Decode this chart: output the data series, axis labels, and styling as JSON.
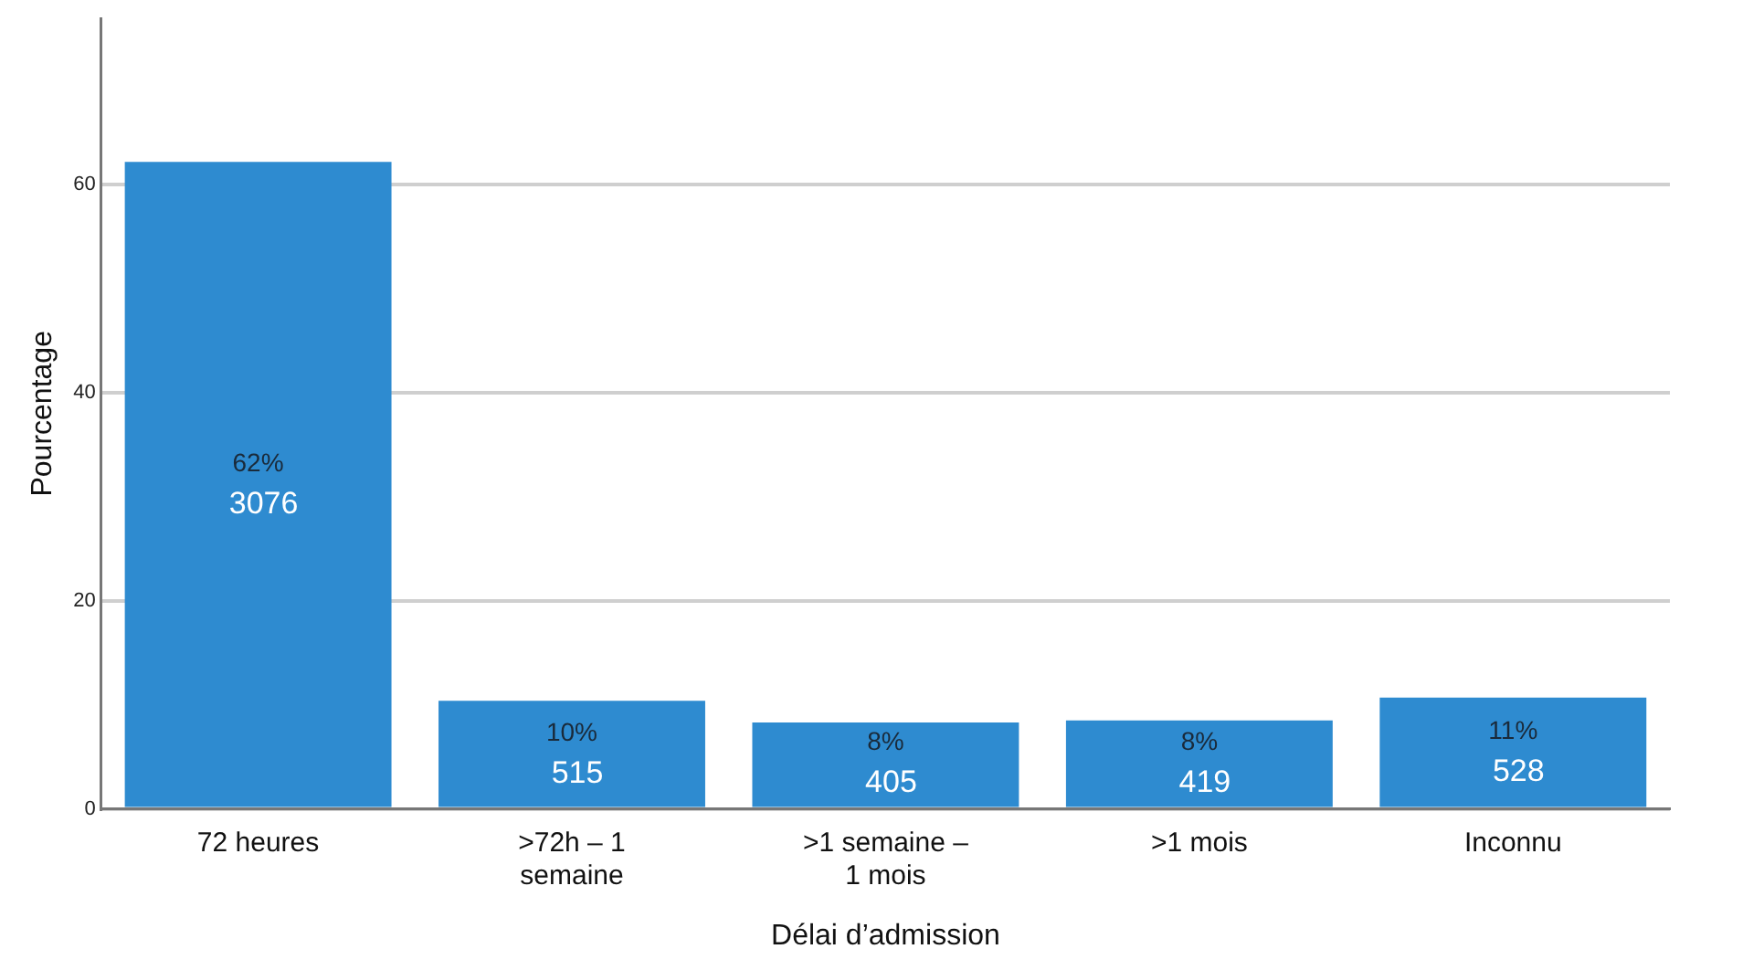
{
  "chart_data": {
    "type": "bar",
    "xlabel": "Délai d’admission",
    "ylabel": "Pourcentage",
    "categories": [
      "72 heures",
      ">72h – 1 semaine",
      ">1 semaine – 1 mois",
      ">1 mois",
      "Inconnu"
    ],
    "values": [
      62.2,
      10.4,
      8.3,
      8.5,
      10.7
    ],
    "value_labels": [
      "62%\n3076",
      "10%\n515",
      "8%\n405",
      "8%\n419",
      "11%\n528"
    ],
    "color": "#2e8bd0",
    "ylim": [
      0,
      76
    ],
    "yticks": [
      0,
      20,
      40,
      60
    ],
    "grid": "y"
  }
}
